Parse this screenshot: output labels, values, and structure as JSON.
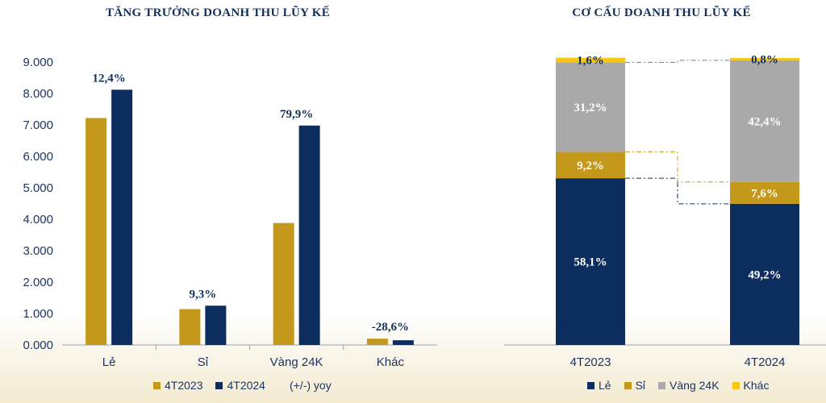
{
  "chart_data": [
    {
      "type": "bar",
      "title": "TĂNG TRƯỞNG DOANH THU LŨY KẾ",
      "categories": [
        "Lẻ",
        "Sỉ",
        "Vàng 24K",
        "Khác"
      ],
      "series": [
        {
          "name": "4T2023",
          "values": [
            7220,
            1140,
            3880,
            200
          ],
          "color": "#c4981a"
        },
        {
          "name": "4T2024",
          "values": [
            8120,
            1250,
            6980,
            150
          ],
          "color": "#0d2d5e"
        }
      ],
      "growth_labels": [
        "12,4%",
        "9,3%",
        "79,9%",
        "-28,6%"
      ],
      "growth_legend": "(+/-) yoy",
      "yticks": [
        "0.000",
        "1.000",
        "2.000",
        "3.000",
        "4.000",
        "5.000",
        "6.000",
        "7.000",
        "8.000",
        "9.000"
      ],
      "ylim": [
        0,
        9000
      ],
      "legend_position": "bottom"
    },
    {
      "type": "bar",
      "stacked": true,
      "title": "CƠ CẤU DOANH THU LŨY KẾ",
      "categories": [
        "4T2023",
        "4T2024"
      ],
      "series": [
        {
          "name": "Lẻ",
          "values": [
            58.1,
            49.2
          ],
          "labels": [
            "58,1%",
            "49,2%"
          ],
          "color": "#0d2d5e",
          "label_color": "#ffffff"
        },
        {
          "name": "Sỉ",
          "values": [
            9.2,
            7.6
          ],
          "labels": [
            "9,2%",
            "7,6%"
          ],
          "color": "#c4981a",
          "label_color": "#ffffff"
        },
        {
          "name": "Vàng 24K",
          "values": [
            31.2,
            42.4
          ],
          "labels": [
            "31,2%",
            "42,4%"
          ],
          "color": "#a9a9a9",
          "label_color": "#ffffff"
        },
        {
          "name": "Khác",
          "values": [
            1.6,
            0.8
          ],
          "labels": [
            "1,6%",
            "0,8%"
          ],
          "color": "#f5c518",
          "label_color": "#12305e"
        }
      ],
      "ylim": [
        0,
        100
      ],
      "legend_position": "bottom"
    }
  ]
}
